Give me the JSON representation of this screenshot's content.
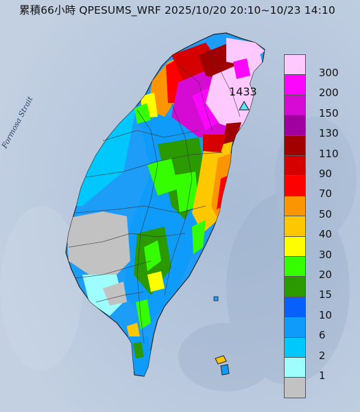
{
  "map": {
    "title": "累積66小時 QPESUMS_WRF 2025/10/20 20:10~10/23 14:10",
    "water_label": "Formosa Strait",
    "max_station": {
      "value": "1433",
      "marker": "triangle-marker"
    }
  },
  "legend": {
    "items": [
      {
        "label": "300",
        "color": "#fec9fe"
      },
      {
        "label": "200",
        "color": "#fd06fd"
      },
      {
        "label": "150",
        "color": "#d60bd3"
      },
      {
        "label": "130",
        "color": "#a0019e"
      },
      {
        "label": "110",
        "color": "#a00000"
      },
      {
        "label": "90",
        "color": "#d60000"
      },
      {
        "label": "70",
        "color": "#fd0000"
      },
      {
        "label": "50",
        "color": "#fc9502"
      },
      {
        "label": "40",
        "color": "#fdc800"
      },
      {
        "label": "30",
        "color": "#fefe00"
      },
      {
        "label": "20",
        "color": "#35fe00"
      },
      {
        "label": "15",
        "color": "#2a9a00"
      },
      {
        "label": "10",
        "color": "#0760f9"
      },
      {
        "label": "6",
        "color": "#0f9bf9"
      },
      {
        "label": "2",
        "color": "#00c7fc"
      },
      {
        "label": "1",
        "color": "#9efefe"
      },
      {
        "label": "",
        "color": "#c2c2c2"
      }
    ]
  }
}
